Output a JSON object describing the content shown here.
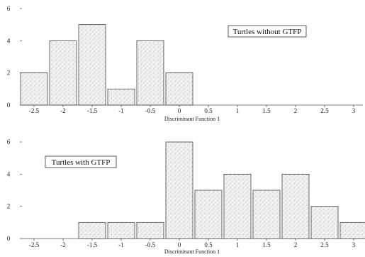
{
  "chart_data": [
    {
      "type": "bar",
      "title": "",
      "legend": "Turtles without GTFP",
      "xlabel": "Discriminant Function 1",
      "ylabel": "",
      "x_ticks": [
        "-2.5",
        "-2",
        "-1.5",
        "-1",
        "-0.5",
        "0",
        "0.5",
        "1",
        "1.5",
        "2",
        "2.5",
        "3"
      ],
      "y_ticks": [
        "0",
        "2",
        "4",
        "6"
      ],
      "ylim": [
        0,
        6
      ],
      "values": [
        2,
        4,
        5,
        1,
        4,
        2,
        0,
        0,
        0,
        0,
        0,
        0
      ]
    },
    {
      "type": "bar",
      "title": "",
      "legend": "Turtles with GTFP",
      "xlabel": "Discriminant Function 1",
      "ylabel": "",
      "x_ticks": [
        "-2.5",
        "-2",
        "-1.5",
        "-1",
        "-0.5",
        "0",
        "0.5",
        "1",
        "1.5",
        "2",
        "2.5",
        "3"
      ],
      "y_ticks": [
        "0",
        "2",
        "4",
        "6"
      ],
      "ylim": [
        0,
        6
      ],
      "values": [
        0,
        0,
        1,
        1,
        1,
        6,
        3,
        4,
        3,
        4,
        2,
        1
      ]
    }
  ]
}
